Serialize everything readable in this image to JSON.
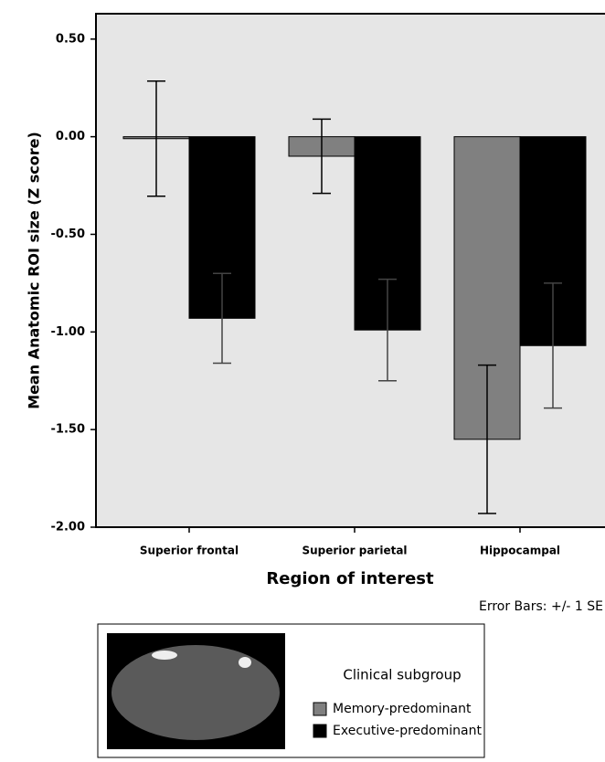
{
  "chart_data": {
    "type": "bar",
    "x_label": "Region of interest",
    "y_label": "Mean Anatomic ROI size (Z score)",
    "annotation": "Error Bars: +/- 1 SE",
    "legend_title": "Clinical subgroup",
    "categories": [
      "Superior frontal",
      "Superior parietal",
      "Hippocampal"
    ],
    "series": [
      {
        "name": "Memory-predominant",
        "color": "#808080",
        "values": [
          -0.01,
          -0.1,
          -1.55
        ],
        "errors": [
          0.295,
          0.19,
          0.38
        ]
      },
      {
        "name": "Executive-predominant",
        "color": "#000000",
        "values": [
          -0.93,
          -0.99,
          -1.07
        ],
        "errors": [
          0.23,
          0.26,
          0.32
        ]
      }
    ],
    "ylim": [
      -2.0,
      0.63
    ],
    "yticks": [
      {
        "value": 0.5,
        "label": "0.50"
      },
      {
        "value": 0,
        "label": "0.00"
      },
      {
        "value": -0.5,
        "label": "-0.50"
      },
      {
        "value": -1,
        "label": "-1.00"
      },
      {
        "value": -1.5,
        "label": "-1.50"
      },
      {
        "value": -2,
        "label": "-2.00"
      }
    ]
  }
}
